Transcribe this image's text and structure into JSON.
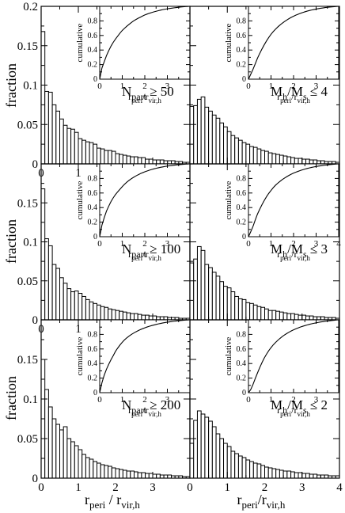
{
  "figure": {
    "ylabel": "fraction",
    "xlabel_main": "r",
    "xlabel_sub1": "peri",
    "xlabel_mid": " / r",
    "xlabel_sub2": "vir,h",
    "xlabel_main_b": "r",
    "xlabel_sub1_b": "peri",
    "xlabel_mid_b": "/r",
    "xlabel_sub2_b": "vir,h"
  },
  "chart_data": [
    {
      "type": "bar",
      "panel": "top-left",
      "label_parts": [
        "N",
        "part",
        " ≥ 50"
      ],
      "xlim": [
        0,
        4
      ],
      "ylim": [
        0,
        0.2
      ],
      "xticks": [
        "0",
        "1",
        "2",
        "3"
      ],
      "yticks": [
        "0",
        "0.05",
        "0.1",
        "0.15",
        "0.2"
      ],
      "bin_width": 0.1,
      "values": [
        0.168,
        0.092,
        0.091,
        0.075,
        0.067,
        0.057,
        0.049,
        0.045,
        0.044,
        0.04,
        0.032,
        0.03,
        0.028,
        0.027,
        0.025,
        0.02,
        0.019,
        0.017,
        0.017,
        0.016,
        0.013,
        0.012,
        0.011,
        0.01,
        0.009,
        0.009,
        0.008,
        0.008,
        0.006,
        0.006,
        0.005,
        0.005,
        0.005,
        0.004,
        0.004,
        0.004,
        0.003,
        0.003,
        0.002,
        0.002
      ],
      "inset": {
        "ylabel": "cumulative",
        "xlabel_parts": [
          "r",
          "peri",
          "/r",
          "vir,h"
        ],
        "xlim": [
          0,
          4
        ],
        "ylim": [
          0,
          1
        ],
        "xticks": [
          "0",
          "1",
          "2",
          "3"
        ],
        "yticks": [
          "0",
          "0.2",
          "0.4",
          "0.6",
          "0.8"
        ]
      }
    },
    {
      "type": "bar",
      "panel": "top-right",
      "label_parts": [
        "M",
        "h",
        "/M",
        "s",
        " ≤ 4"
      ],
      "xlim": [
        0,
        4
      ],
      "ylim": [
        0,
        0.2
      ],
      "bin_width": 0.1,
      "values": [
        0.073,
        0.074,
        0.082,
        0.085,
        0.072,
        0.067,
        0.062,
        0.058,
        0.052,
        0.047,
        0.041,
        0.036,
        0.033,
        0.03,
        0.027,
        0.025,
        0.022,
        0.021,
        0.019,
        0.017,
        0.016,
        0.014,
        0.013,
        0.012,
        0.011,
        0.01,
        0.009,
        0.008,
        0.007,
        0.007,
        0.006,
        0.006,
        0.005,
        0.005,
        0.004,
        0.004,
        0.003,
        0.003,
        0.003,
        0.002
      ],
      "inset": {
        "ylabel": "cumulative",
        "xlabel_parts": [
          "r",
          "peri",
          "/r",
          "vir,h"
        ],
        "xlim": [
          0,
          4
        ],
        "ylim": [
          0,
          1
        ],
        "xticks": [
          "0",
          "1",
          "2",
          "3"
        ],
        "yticks": [
          "0",
          "0.2",
          "0.4",
          "0.6",
          "0.8"
        ]
      }
    },
    {
      "type": "bar",
      "panel": "middle-left",
      "label_parts": [
        "N",
        "part",
        " ≥ 100"
      ],
      "xlim": [
        0,
        4
      ],
      "ylim": [
        0,
        0.2
      ],
      "xticks": [
        "0",
        "1",
        "2",
        "3"
      ],
      "yticks": [
        "0",
        "0.05",
        "0.1",
        "0.15"
      ],
      "bin_width": 0.1,
      "values": [
        0.168,
        0.104,
        0.095,
        0.071,
        0.066,
        0.054,
        0.047,
        0.04,
        0.036,
        0.037,
        0.034,
        0.03,
        0.026,
        0.023,
        0.021,
        0.019,
        0.017,
        0.016,
        0.014,
        0.013,
        0.012,
        0.011,
        0.01,
        0.009,
        0.008,
        0.008,
        0.007,
        0.006,
        0.006,
        0.005,
        0.005,
        0.004,
        0.004,
        0.004,
        0.003,
        0.003,
        0.003,
        0.002,
        0.002,
        0.002
      ],
      "inset": {
        "ylabel": "cumulative",
        "xlabel_parts": [
          "r",
          "peri",
          "/r",
          "vir,h"
        ],
        "xlim": [
          0,
          4
        ],
        "ylim": [
          0,
          1
        ],
        "xticks": [
          "0",
          "1",
          "2",
          "3"
        ],
        "yticks": [
          "0",
          "0.2",
          "0.4",
          "0.6",
          "0.8"
        ]
      }
    },
    {
      "type": "bar",
      "panel": "middle-right",
      "label_parts": [
        "M",
        "h",
        "/M",
        "s",
        " ≤ 3"
      ],
      "xlim": [
        0,
        4
      ],
      "ylim": [
        0,
        0.2
      ],
      "bin_width": 0.1,
      "values": [
        0.073,
        0.078,
        0.094,
        0.089,
        0.071,
        0.067,
        0.061,
        0.056,
        0.049,
        0.043,
        0.041,
        0.036,
        0.03,
        0.027,
        0.026,
        0.022,
        0.021,
        0.019,
        0.017,
        0.016,
        0.014,
        0.012,
        0.012,
        0.011,
        0.01,
        0.009,
        0.008,
        0.008,
        0.007,
        0.006,
        0.006,
        0.005,
        0.005,
        0.004,
        0.004,
        0.004,
        0.003,
        0.003,
        0.003,
        0.002
      ],
      "inset": {
        "ylabel": "cumulative",
        "xlabel_parts": [
          "r",
          "peri",
          "/r",
          "vir,h"
        ],
        "xlim": [
          0,
          4
        ],
        "ylim": [
          0,
          1
        ],
        "xticks": [
          "0",
          "1",
          "2",
          "3",
          "4"
        ],
        "yticks": [
          "0",
          "0.2",
          "0.4",
          "0.6",
          "0.8"
        ]
      }
    },
    {
      "type": "bar",
      "panel": "bottom-left",
      "label_parts": [
        "N",
        "part",
        " ≥ 200"
      ],
      "xlim": [
        0,
        4
      ],
      "ylim": [
        0,
        0.2
      ],
      "xticks": [
        "0",
        "1",
        "2",
        "3"
      ],
      "yticks": [
        "0",
        "0.05",
        "0.1",
        "0.15"
      ],
      "bin_width": 0.1,
      "values": [
        0.15,
        0.112,
        0.09,
        0.075,
        0.068,
        0.061,
        0.065,
        0.05,
        0.046,
        0.041,
        0.036,
        0.03,
        0.026,
        0.024,
        0.021,
        0.019,
        0.017,
        0.016,
        0.015,
        0.013,
        0.012,
        0.011,
        0.01,
        0.009,
        0.009,
        0.008,
        0.007,
        0.007,
        0.006,
        0.006,
        0.005,
        0.005,
        0.004,
        0.004,
        0.004,
        0.003,
        0.003,
        0.003,
        0.002,
        0.002
      ],
      "inset": {
        "ylabel": "cumulative",
        "xlabel_parts": [
          "r",
          "peri",
          "/r",
          "vir,h"
        ],
        "xlim": [
          0,
          4
        ],
        "ylim": [
          0,
          1
        ],
        "xticks": [
          "0",
          "1",
          "2",
          "3"
        ],
        "yticks": [
          "0",
          "0.2",
          "0.4",
          "0.6",
          "0.8"
        ]
      }
    },
    {
      "type": "bar",
      "panel": "bottom-right",
      "label_parts": [
        "M",
        "h",
        "/M",
        "s",
        " ≤ 2"
      ],
      "xlim": [
        0,
        4
      ],
      "ylim": [
        0,
        0.2
      ],
      "xticks": [
        "0",
        "1",
        "2",
        "3",
        "4"
      ],
      "bin_width": 0.1,
      "values": [
        0.044,
        0.073,
        0.085,
        0.081,
        0.077,
        0.072,
        0.065,
        0.056,
        0.05,
        0.044,
        0.04,
        0.034,
        0.031,
        0.028,
        0.026,
        0.023,
        0.021,
        0.019,
        0.018,
        0.016,
        0.014,
        0.013,
        0.012,
        0.011,
        0.01,
        0.009,
        0.009,
        0.008,
        0.007,
        0.007,
        0.006,
        0.006,
        0.005,
        0.005,
        0.004,
        0.004,
        0.004,
        0.003,
        0.003,
        0.003
      ],
      "inset": {
        "ylabel": "cumulative",
        "xlabel_parts": [
          "r",
          "peri",
          "/r",
          "vir,h"
        ],
        "xlim": [
          0,
          4
        ],
        "ylim": [
          0,
          1
        ],
        "xticks": [
          "0",
          "1",
          "2",
          "3"
        ],
        "yticks": [
          "0",
          "0.2",
          "0.4",
          "0.6",
          "0.8"
        ]
      }
    }
  ]
}
